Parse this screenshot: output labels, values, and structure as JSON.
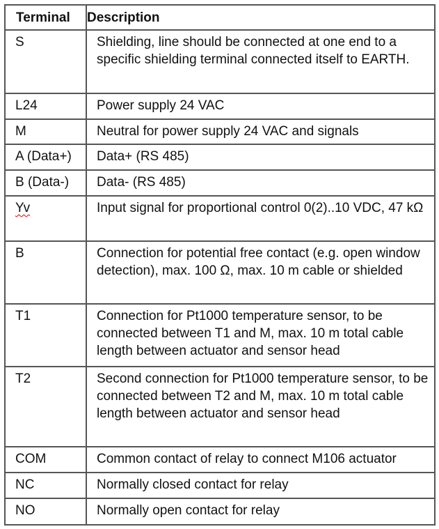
{
  "table": {
    "headers": [
      "Terminal",
      "Description"
    ],
    "rows": [
      {
        "terminal": "S",
        "description": "Shielding, line should be connected at one end to a specific shielding terminal connected itself to EARTH."
      },
      {
        "terminal": "L24",
        "description": "Power supply 24 VAC"
      },
      {
        "terminal": "M",
        "description": "Neutral for power supply 24 VAC and signals"
      },
      {
        "terminal": "A (Data+)",
        "description": "Data+ (RS 485)"
      },
      {
        "terminal": "B (Data-)",
        "description": "Data- (RS 485)"
      },
      {
        "terminal": "Yv",
        "description": "Input signal for proportional control 0(2)..10 VDC, 47 kΩ"
      },
      {
        "terminal": "B",
        "description": "Connection for potential free contact (e.g. open window detection), max. 100 Ω, max. 10 m cable or shielded"
      },
      {
        "terminal": "T1",
        "description": "Connection for Pt1000 temperature sensor, to be connected between T1 and M, max. 10 m total cable length between actuator and sensor head"
      },
      {
        "terminal": "T2",
        "description": "Second connection for Pt1000 temperature sensor, to be connected between T2 and M, max. 10 m total cable length between actuator and sensor head"
      },
      {
        "terminal": "COM",
        "description": "Common contact of relay to connect M106 actuator"
      },
      {
        "terminal": "NC",
        "description": "Normally closed contact for relay"
      },
      {
        "terminal": "NO",
        "description": "Normally open contact for relay"
      }
    ]
  }
}
